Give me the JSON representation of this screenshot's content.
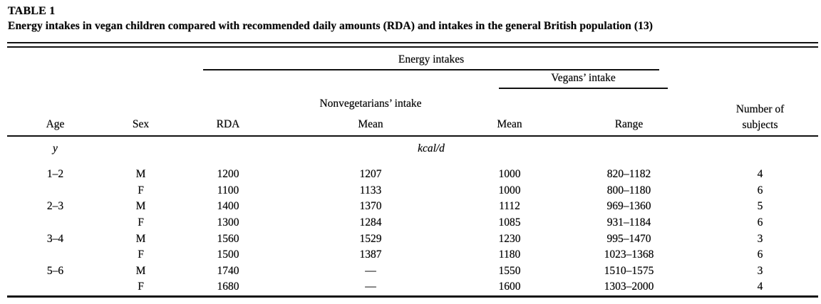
{
  "table": {
    "label": "TABLE 1",
    "caption": "Energy intakes in vegan children compared with recommended daily amounts (RDA) and intakes in the general British population (13)",
    "headers": {
      "energy_intakes": "Energy intakes",
      "nonveg_intake": "Nonvegetarians’ intake",
      "vegans_intake": "Vegans’ intake",
      "age": "Age",
      "sex": "Sex",
      "rda": "RDA",
      "nonveg_mean": "Mean",
      "vegan_mean": "Mean",
      "vegan_range": "Range",
      "subjects_line1": "Number of",
      "subjects_line2": "subjects"
    },
    "units": {
      "age_unit": "y",
      "energy_unit": "kcal/d"
    },
    "rows": [
      {
        "age": "1–2",
        "sex": "M",
        "rda": "1200",
        "nonveg_mean": "1207",
        "vegan_mean": "1000",
        "range": "820–1182",
        "n": "4"
      },
      {
        "age": "",
        "sex": "F",
        "rda": "1100",
        "nonveg_mean": "1133",
        "vegan_mean": "1000",
        "range": "800–1180",
        "n": "6"
      },
      {
        "age": "2–3",
        "sex": "M",
        "rda": "1400",
        "nonveg_mean": "1370",
        "vegan_mean": "1112",
        "range": "969–1360",
        "n": "5"
      },
      {
        "age": "",
        "sex": "F",
        "rda": "1300",
        "nonveg_mean": "1284",
        "vegan_mean": "1085",
        "range": "931–1184",
        "n": "6"
      },
      {
        "age": "3–4",
        "sex": "M",
        "rda": "1560",
        "nonveg_mean": "1529",
        "vegan_mean": "1230",
        "range": "995–1470",
        "n": "3"
      },
      {
        "age": "",
        "sex": "F",
        "rda": "1500",
        "nonveg_mean": "1387",
        "vegan_mean": "1180",
        "range": "1023–1368",
        "n": "6"
      },
      {
        "age": "5–6",
        "sex": "M",
        "rda": "1740",
        "nonveg_mean": "—",
        "vegan_mean": "1550",
        "range": "1510–1575",
        "n": "3"
      },
      {
        "age": "",
        "sex": "F",
        "rda": "1680",
        "nonveg_mean": "—",
        "vegan_mean": "1600",
        "range": "1303–2000",
        "n": "4"
      }
    ]
  }
}
